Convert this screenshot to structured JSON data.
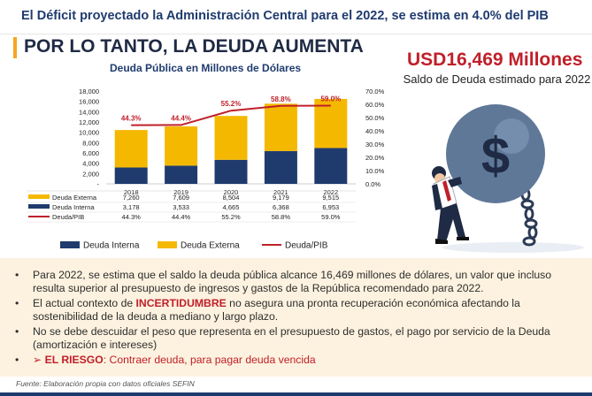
{
  "header": {
    "title": "El Déficit proyectado la Administración Central para el 2022, se estima en 4.0% del PIB"
  },
  "main_title": "POR LO TANTO, LA DEUDA AUMENTA",
  "highlight": {
    "value": "USD16,469 Millones",
    "caption": "Saldo de Deuda estimado para 2022"
  },
  "chart_data": {
    "type": "bar",
    "title": "Deuda Pública en Millones de Dólares",
    "categories": [
      "2018",
      "2019",
      "2020",
      "2021",
      "2022"
    ],
    "stacked": true,
    "ylim": [
      0,
      18000
    ],
    "yticks": [
      "18,000",
      "16,000",
      "14,000",
      "12,000",
      "10,000",
      "8,000",
      "6,000",
      "4,000",
      "2,000",
      "-"
    ],
    "y2lim": [
      0,
      70
    ],
    "y2ticks": [
      "70.0%",
      "60.0%",
      "50.0%",
      "40.0%",
      "30.0%",
      "20.0%",
      "10.0%",
      "0.0%"
    ],
    "series": [
      {
        "name": "Deuda Externa",
        "values": [
          7260,
          7609,
          8504,
          9179,
          9515
        ],
        "labels": [
          "7,260",
          "7,609",
          "8,504",
          "9,179",
          "9,515"
        ],
        "color": "#f5b800"
      },
      {
        "name": "Deuda Interna",
        "values": [
          3178,
          3533,
          4665,
          6368,
          6953
        ],
        "labels": [
          "3,178",
          "3,533",
          "4,665",
          "6,368",
          "6,953"
        ],
        "color": "#1f3b6e"
      },
      {
        "name": "Deuda/PIB",
        "values": [
          44.3,
          44.4,
          55.2,
          58.8,
          59.0
        ],
        "labels": [
          "44.3%",
          "44.4%",
          "55.2%",
          "58.8%",
          "59.0%"
        ],
        "color": "#c0202a",
        "axis": "secondary",
        "kind": "line"
      }
    ],
    "legend_order": [
      "Deuda Interna",
      "Deuda Externa",
      "Deuda/PIB"
    ]
  },
  "bullets": {
    "b1": "Para 2022, se estima que el saldo la deuda pública alcance 16,469 millones de dólares, un valor que incluso resulta superior al presupuesto de ingresos y gastos de la República recomendado para 2022.",
    "b2_pre": "El actual contexto de ",
    "b2_hl": "INCERTIDUMBRE",
    "b2_post": " no asegura una pronta recuperación económica afectando la sostenibilidad de la deuda a mediano y largo plazo.",
    "b3": "No se debe descuidar el peso que representa en el presupuesto de gastos, el pago por servicio de la Deuda (amortización e intereses)",
    "b4_arrow": "➢",
    "b4_label": "EL RIESGO",
    "b4_text": ": Contraer deuda, para pagar deuda vencida",
    "dot": "•"
  },
  "source": "Fuente: Elaboración propia con datos oficiales SEFIN"
}
